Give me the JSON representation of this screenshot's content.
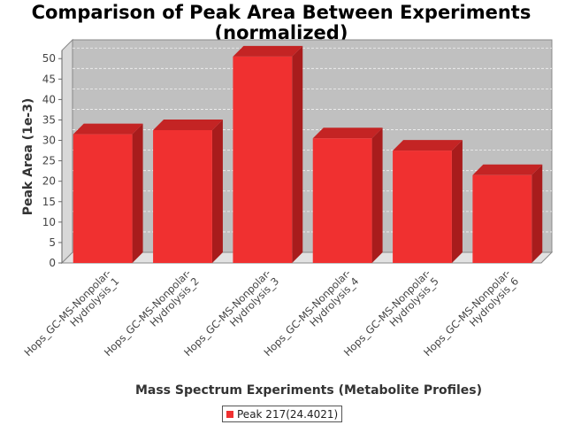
{
  "chart_data": {
    "type": "bar",
    "title": "Comparison of Peak Area Between Experiments",
    "subtitle": "(normalized)",
    "xlabel": "Mass Spectrum Experiments (Metabolite Profiles)",
    "ylabel": "Peak Area (1e-3)",
    "ylim": [
      0,
      52
    ],
    "yticks": [
      0,
      5,
      10,
      15,
      20,
      25,
      30,
      35,
      40,
      45,
      50
    ],
    "categories": [
      [
        "Hops_GC-MS-Nonpolar-",
        "Hydrolysis_1"
      ],
      [
        "Hops_GC-MS-Nonpolar-",
        "Hydrolysis_2"
      ],
      [
        "Hops_GC-MS-Nonpolar-",
        "Hydrolysis_3"
      ],
      [
        "Hops_GC-MS-Nonpolar-",
        "Hydrolysis_4"
      ],
      [
        "Hops_GC-MS-Nonpolar-",
        "Hydrolysis_5"
      ],
      [
        "Hops_GC-MS-Nonpolar-",
        "Hydrolysis_6"
      ]
    ],
    "series": [
      {
        "name": "Peak 217(24.4021)",
        "values": [
          31.5,
          32.5,
          50.5,
          30.5,
          27.5,
          21.5
        ],
        "color": "#f03030"
      }
    ],
    "grid": true,
    "legend_position": "bottom",
    "colors": {
      "plot_bg": "#c0c0c0",
      "wall": "#d8d8d8",
      "floor": "#e2e2e2",
      "bar_front": "#f03030",
      "bar_top": "#c42424",
      "bar_side": "#a81c1c"
    }
  }
}
